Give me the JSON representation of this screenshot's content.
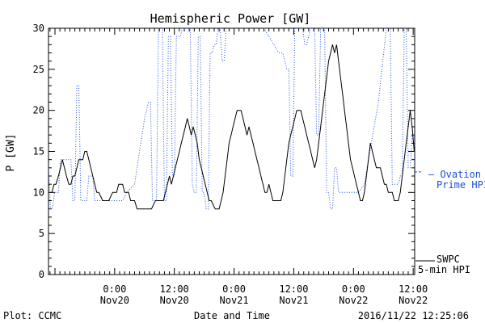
{
  "chart_data": {
    "type": "line",
    "title": "Hemispheric Power [GW]",
    "ylabel": "P [GW]",
    "xlabel": "Date and Time",
    "ylim": [
      0,
      30
    ],
    "yticks": [
      0,
      5,
      10,
      15,
      20,
      25,
      30
    ],
    "xlim": [
      -13.3,
      60.3
    ],
    "xlim_unit": "hours relative to 2016-11-20 00:00 UT",
    "xticks": [
      {
        "x": 0,
        "line1": "0:00",
        "line2": "Nov20"
      },
      {
        "x": 12,
        "line1": "12:00",
        "line2": "Nov20"
      },
      {
        "x": 24,
        "line1": "0:00",
        "line2": "Nov21"
      },
      {
        "x": 36,
        "line1": "12:00",
        "line2": "Nov21"
      },
      {
        "x": 48,
        "line1": "0:00",
        "line2": "Nov22"
      },
      {
        "x": 60,
        "line1": "12:00",
        "line2": "Nov22"
      }
    ],
    "series": [
      {
        "name": "SWPC 5-min HPI",
        "color": "#000000",
        "style": "solid",
        "points": [
          [
            -13.3,
            10
          ],
          [
            -12.6,
            10
          ],
          [
            -12.2,
            11
          ],
          [
            -11.8,
            11
          ],
          [
            -11.3,
            12
          ],
          [
            -10.9,
            13
          ],
          [
            -10.5,
            14
          ],
          [
            -10.1,
            13
          ],
          [
            -9.7,
            12
          ],
          [
            -9.2,
            11
          ],
          [
            -8.8,
            11
          ],
          [
            -8.4,
            12
          ],
          [
            -8.0,
            12
          ],
          [
            -7.6,
            13
          ],
          [
            -7.2,
            14
          ],
          [
            -6.4,
            14
          ],
          [
            -6.0,
            15
          ],
          [
            -5.6,
            15
          ],
          [
            -5.2,
            14
          ],
          [
            -4.8,
            13
          ],
          [
            -4.4,
            12
          ],
          [
            -4.0,
            11
          ],
          [
            -3.6,
            10
          ],
          [
            -3.2,
            10
          ],
          [
            -2.4,
            9
          ],
          [
            -1.2,
            9
          ],
          [
            -0.4,
            10
          ],
          [
            0.4,
            10
          ],
          [
            0.8,
            11
          ],
          [
            1.6,
            11
          ],
          [
            2.0,
            10
          ],
          [
            2.8,
            10
          ],
          [
            3.2,
            9
          ],
          [
            4.0,
            9
          ],
          [
            4.5,
            8
          ],
          [
            7.4,
            8
          ],
          [
            8.2,
            9
          ],
          [
            9.8,
            9
          ],
          [
            10.2,
            10
          ],
          [
            10.6,
            11
          ],
          [
            11.0,
            12
          ],
          [
            11.4,
            11
          ],
          [
            11.8,
            12
          ],
          [
            12.2,
            13
          ],
          [
            12.6,
            14
          ],
          [
            13.0,
            15
          ],
          [
            13.4,
            16
          ],
          [
            13.8,
            17
          ],
          [
            14.2,
            18
          ],
          [
            14.6,
            19
          ],
          [
            15.0,
            18
          ],
          [
            15.4,
            17
          ],
          [
            15.8,
            18
          ],
          [
            16.2,
            17
          ],
          [
            16.6,
            16
          ],
          [
            17.0,
            14
          ],
          [
            17.4,
            13
          ],
          [
            17.8,
            12
          ],
          [
            18.2,
            11
          ],
          [
            18.6,
            10
          ],
          [
            19.0,
            9
          ],
          [
            19.4,
            9
          ],
          [
            20.2,
            8
          ],
          [
            21.0,
            8
          ],
          [
            21.4,
            9
          ],
          [
            21.8,
            10
          ],
          [
            22.2,
            12
          ],
          [
            22.6,
            14
          ],
          [
            23.0,
            16
          ],
          [
            23.4,
            17
          ],
          [
            23.8,
            18
          ],
          [
            24.2,
            19
          ],
          [
            24.6,
            20
          ],
          [
            25.4,
            20
          ],
          [
            25.8,
            19
          ],
          [
            26.2,
            18
          ],
          [
            26.6,
            17
          ],
          [
            27.0,
            18
          ],
          [
            27.4,
            17
          ],
          [
            27.8,
            16
          ],
          [
            28.2,
            15
          ],
          [
            28.6,
            14
          ],
          [
            29.0,
            13
          ],
          [
            29.4,
            12
          ],
          [
            29.8,
            11
          ],
          [
            30.2,
            10
          ],
          [
            30.6,
            10
          ],
          [
            31.0,
            11
          ],
          [
            31.4,
            10
          ],
          [
            31.8,
            9
          ],
          [
            32.2,
            9
          ],
          [
            33.4,
            9
          ],
          [
            33.8,
            10
          ],
          [
            34.2,
            12
          ],
          [
            34.6,
            14
          ],
          [
            35.0,
            16
          ],
          [
            35.4,
            17
          ],
          [
            35.8,
            18
          ],
          [
            36.2,
            19
          ],
          [
            36.6,
            20
          ],
          [
            37.4,
            20
          ],
          [
            37.8,
            19
          ],
          [
            38.2,
            18
          ],
          [
            38.6,
            17
          ],
          [
            39.0,
            16
          ],
          [
            39.4,
            15
          ],
          [
            39.8,
            14
          ],
          [
            40.2,
            13
          ],
          [
            40.6,
            14
          ],
          [
            41.0,
            16
          ],
          [
            41.4,
            18
          ],
          [
            41.8,
            20
          ],
          [
            42.2,
            22
          ],
          [
            42.6,
            24
          ],
          [
            43.0,
            26
          ],
          [
            43.4,
            27
          ],
          [
            43.8,
            28
          ],
          [
            44.2,
            27
          ],
          [
            44.6,
            28
          ],
          [
            45.0,
            26
          ],
          [
            45.4,
            24
          ],
          [
            45.8,
            22
          ],
          [
            46.2,
            20
          ],
          [
            46.6,
            18
          ],
          [
            47.0,
            16
          ],
          [
            47.4,
            14
          ],
          [
            47.8,
            13
          ],
          [
            48.2,
            12
          ],
          [
            48.6,
            11
          ],
          [
            49.0,
            10
          ],
          [
            49.4,
            9
          ],
          [
            49.8,
            9
          ],
          [
            50.2,
            10
          ],
          [
            50.6,
            12
          ],
          [
            51.0,
            14
          ],
          [
            51.4,
            16
          ],
          [
            51.8,
            15
          ],
          [
            52.2,
            14
          ],
          [
            52.6,
            13
          ],
          [
            53.4,
            13
          ],
          [
            53.8,
            12
          ],
          [
            54.2,
            11
          ],
          [
            54.6,
            11
          ],
          [
            55.0,
            10
          ],
          [
            55.8,
            10
          ],
          [
            56.2,
            9
          ],
          [
            57.0,
            9
          ],
          [
            57.4,
            10
          ],
          [
            57.8,
            12
          ],
          [
            58.2,
            14
          ],
          [
            58.6,
            16
          ],
          [
            59.0,
            18
          ],
          [
            59.4,
            20
          ],
          [
            59.8,
            18
          ],
          [
            60.2,
            15
          ],
          [
            60.6,
            16
          ],
          [
            61.0,
            18
          ],
          [
            61.4,
            17
          ],
          [
            61.8,
            13
          ],
          [
            62.2,
            12
          ]
        ]
      },
      {
        "name": "Ovation Prime HPI",
        "color": "#1a4fd6",
        "style": "dotted",
        "points": [
          [
            -13.3,
            13
          ],
          [
            -12.9,
            8
          ],
          [
            -12.5,
            8
          ],
          [
            -12.1,
            10
          ],
          [
            -11.3,
            10
          ],
          [
            -10.9,
            14
          ],
          [
            -10.5,
            14
          ],
          [
            -8.8,
            14
          ],
          [
            -8.4,
            9
          ],
          [
            -8.0,
            9
          ],
          [
            -7.6,
            23
          ],
          [
            -7.2,
            23
          ],
          [
            -6.8,
            9
          ],
          [
            -5.6,
            9
          ],
          [
            -5.2,
            12
          ],
          [
            -4.4,
            12
          ],
          [
            -4.0,
            9
          ],
          [
            -3.6,
            9
          ],
          [
            -2.0,
            9
          ],
          [
            1.6,
            9
          ],
          [
            2.4,
            10
          ],
          [
            4.0,
            11
          ],
          [
            6.0,
            19
          ],
          [
            6.8,
            21
          ],
          [
            7.2,
            21
          ],
          [
            7.6,
            9
          ],
          [
            8.4,
            9
          ],
          [
            8.8,
            30
          ],
          [
            9.6,
            30
          ],
          [
            10.0,
            9
          ],
          [
            10.4,
            9
          ],
          [
            10.8,
            29
          ],
          [
            11.2,
            29
          ],
          [
            11.6,
            12
          ],
          [
            12.0,
            12
          ],
          [
            12.4,
            29
          ],
          [
            13.2,
            29
          ],
          [
            13.6,
            30
          ],
          [
            15.2,
            30
          ],
          [
            15.6,
            11
          ],
          [
            16.0,
            10
          ],
          [
            16.4,
            10
          ],
          [
            16.8,
            29
          ],
          [
            17.2,
            29
          ],
          [
            17.6,
            10
          ],
          [
            18.0,
            10
          ],
          [
            18.4,
            8
          ],
          [
            18.8,
            8
          ],
          [
            19.2,
            27
          ],
          [
            19.6,
            27
          ],
          [
            20.0,
            28
          ],
          [
            20.4,
            28
          ],
          [
            20.8,
            30
          ],
          [
            21.2,
            30
          ],
          [
            21.6,
            26
          ],
          [
            22.0,
            26
          ],
          [
            22.4,
            30
          ],
          [
            24.0,
            33
          ],
          [
            26.0,
            31
          ],
          [
            29.0,
            31
          ],
          [
            30.0,
            30
          ],
          [
            33.0,
            27
          ],
          [
            33.8,
            27
          ],
          [
            34.2,
            26
          ],
          [
            34.6,
            25
          ],
          [
            35.0,
            25
          ],
          [
            35.4,
            12
          ],
          [
            35.8,
            12
          ],
          [
            36.2,
            30
          ],
          [
            37.8,
            30
          ],
          [
            38.2,
            28
          ],
          [
            38.6,
            28
          ],
          [
            39.0,
            29
          ],
          [
            39.4,
            30
          ],
          [
            40.2,
            30
          ],
          [
            40.6,
            17
          ],
          [
            41.0,
            17
          ],
          [
            41.4,
            30
          ],
          [
            42.2,
            30
          ],
          [
            42.6,
            10
          ],
          [
            43.0,
            10
          ],
          [
            43.4,
            8
          ],
          [
            43.8,
            8
          ],
          [
            44.2,
            13
          ],
          [
            44.6,
            13
          ],
          [
            45.0,
            10
          ],
          [
            45.4,
            10
          ],
          [
            46.2,
            10
          ],
          [
            49.0,
            10
          ],
          [
            50.2,
            11
          ],
          [
            51.0,
            14
          ],
          [
            53.0,
            21
          ],
          [
            54.6,
            30
          ],
          [
            55.4,
            30
          ],
          [
            55.8,
            11
          ],
          [
            56.2,
            11
          ],
          [
            57.0,
            11
          ],
          [
            57.4,
            12
          ],
          [
            57.8,
            12
          ],
          [
            58.2,
            30
          ],
          [
            58.6,
            30
          ],
          [
            59.0,
            13
          ],
          [
            59.4,
            13
          ],
          [
            59.8,
            17
          ],
          [
            60.2,
            17
          ],
          [
            60.6,
            8
          ],
          [
            61.0,
            8
          ],
          [
            61.4,
            30
          ],
          [
            61.8,
            12
          ],
          [
            62.2,
            12
          ]
        ]
      }
    ],
    "legend": [
      {
        "text": "— Ovation",
        "text2": "Prime HPI",
        "color": "#1a4fd6"
      },
      {
        "text": "SWPC",
        "text2": "5-min HPI",
        "color": "#000000"
      }
    ],
    "footer_left": "Plot: CCMC",
    "footer_center": "Date and Time",
    "footer_right": "2016/11/22 12:25:06",
    "colors": {
      "ovation": "#1a4fd6",
      "swpc": "#000000",
      "axis": "#000000"
    }
  }
}
